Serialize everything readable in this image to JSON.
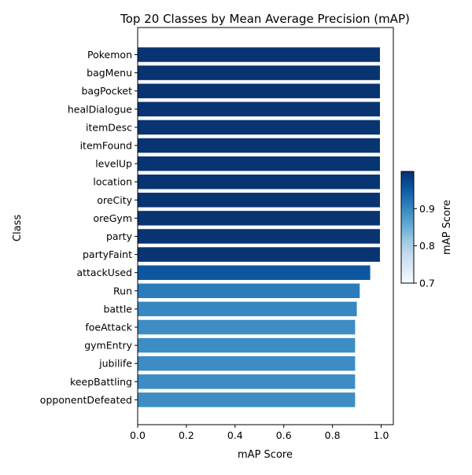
{
  "chart_data": {
    "type": "bar",
    "orientation": "horizontal",
    "title": "Top 20 Classes by Mean Average Precision (mAP)",
    "xlabel": "mAP Score",
    "ylabel": "Class",
    "xlim": [
      0,
      1.05
    ],
    "xticks": [
      "0.0",
      "0.2",
      "0.4",
      "0.6",
      "0.8",
      "1.0"
    ],
    "grid": false,
    "colorbar": {
      "label": "mAP Score",
      "range": [
        0.7,
        1.0
      ],
      "ticks": [
        "0.7",
        "0.8",
        "0.9"
      ],
      "colormap": "Blues"
    },
    "categories": [
      "Pokemon",
      "bagMenu",
      "bagPocket",
      "healDialogue",
      "itemDesc",
      "itemFound",
      "levelUp",
      "location",
      "oreCity",
      "oreGym",
      "party",
      "partyFaint",
      "attackUsed",
      "Run",
      "battle",
      "foeAttack",
      "gymEntry",
      "jubilife",
      "keepBattling",
      "opponentDefeated"
    ],
    "values": [
      0.995,
      0.995,
      0.995,
      0.995,
      0.995,
      0.995,
      0.995,
      0.995,
      0.995,
      0.995,
      0.995,
      0.995,
      0.955,
      0.912,
      0.9,
      0.893,
      0.893,
      0.893,
      0.893,
      0.893
    ]
  }
}
